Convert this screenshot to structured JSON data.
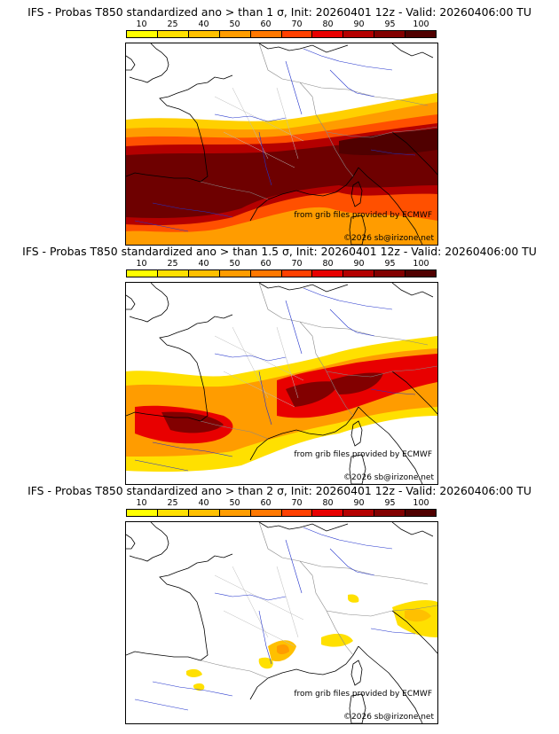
{
  "colorbar": {
    "ticks": [
      "10",
      "25",
      "40",
      "50",
      "60",
      "70",
      "80",
      "90",
      "95",
      "100"
    ],
    "colors": [
      "#ffff00",
      "#ffe000",
      "#ffc000",
      "#ff9c00",
      "#ff7800",
      "#ff4000",
      "#e80000",
      "#b40000",
      "#820000",
      "#500000"
    ]
  },
  "panels": [
    {
      "title": "IFS - Probas T850  standardized ano > than 1 σ, Init: 20260401 12z - Valid: 20260406:00 TU",
      "credit_source": "from grib files provided by ECMWF",
      "credit_copyright": "©2026 sb@irizone.net"
    },
    {
      "title": "IFS - Probas T850  standardized ano > than 1.5 σ, Init: 20260401 12z - Valid: 20260406:00 TU",
      "credit_source": "from grib files provided by ECMWF",
      "credit_copyright": "©2026 sb@irizone.net"
    },
    {
      "title": "IFS - Probas T850  standardized ano > than 2 σ, Init: 20260401 12z - Valid: 20260406:00 TU",
      "credit_source": "from grib files provided by ECMWF",
      "credit_copyright": "©2026 sb@irizone.net"
    }
  ]
}
